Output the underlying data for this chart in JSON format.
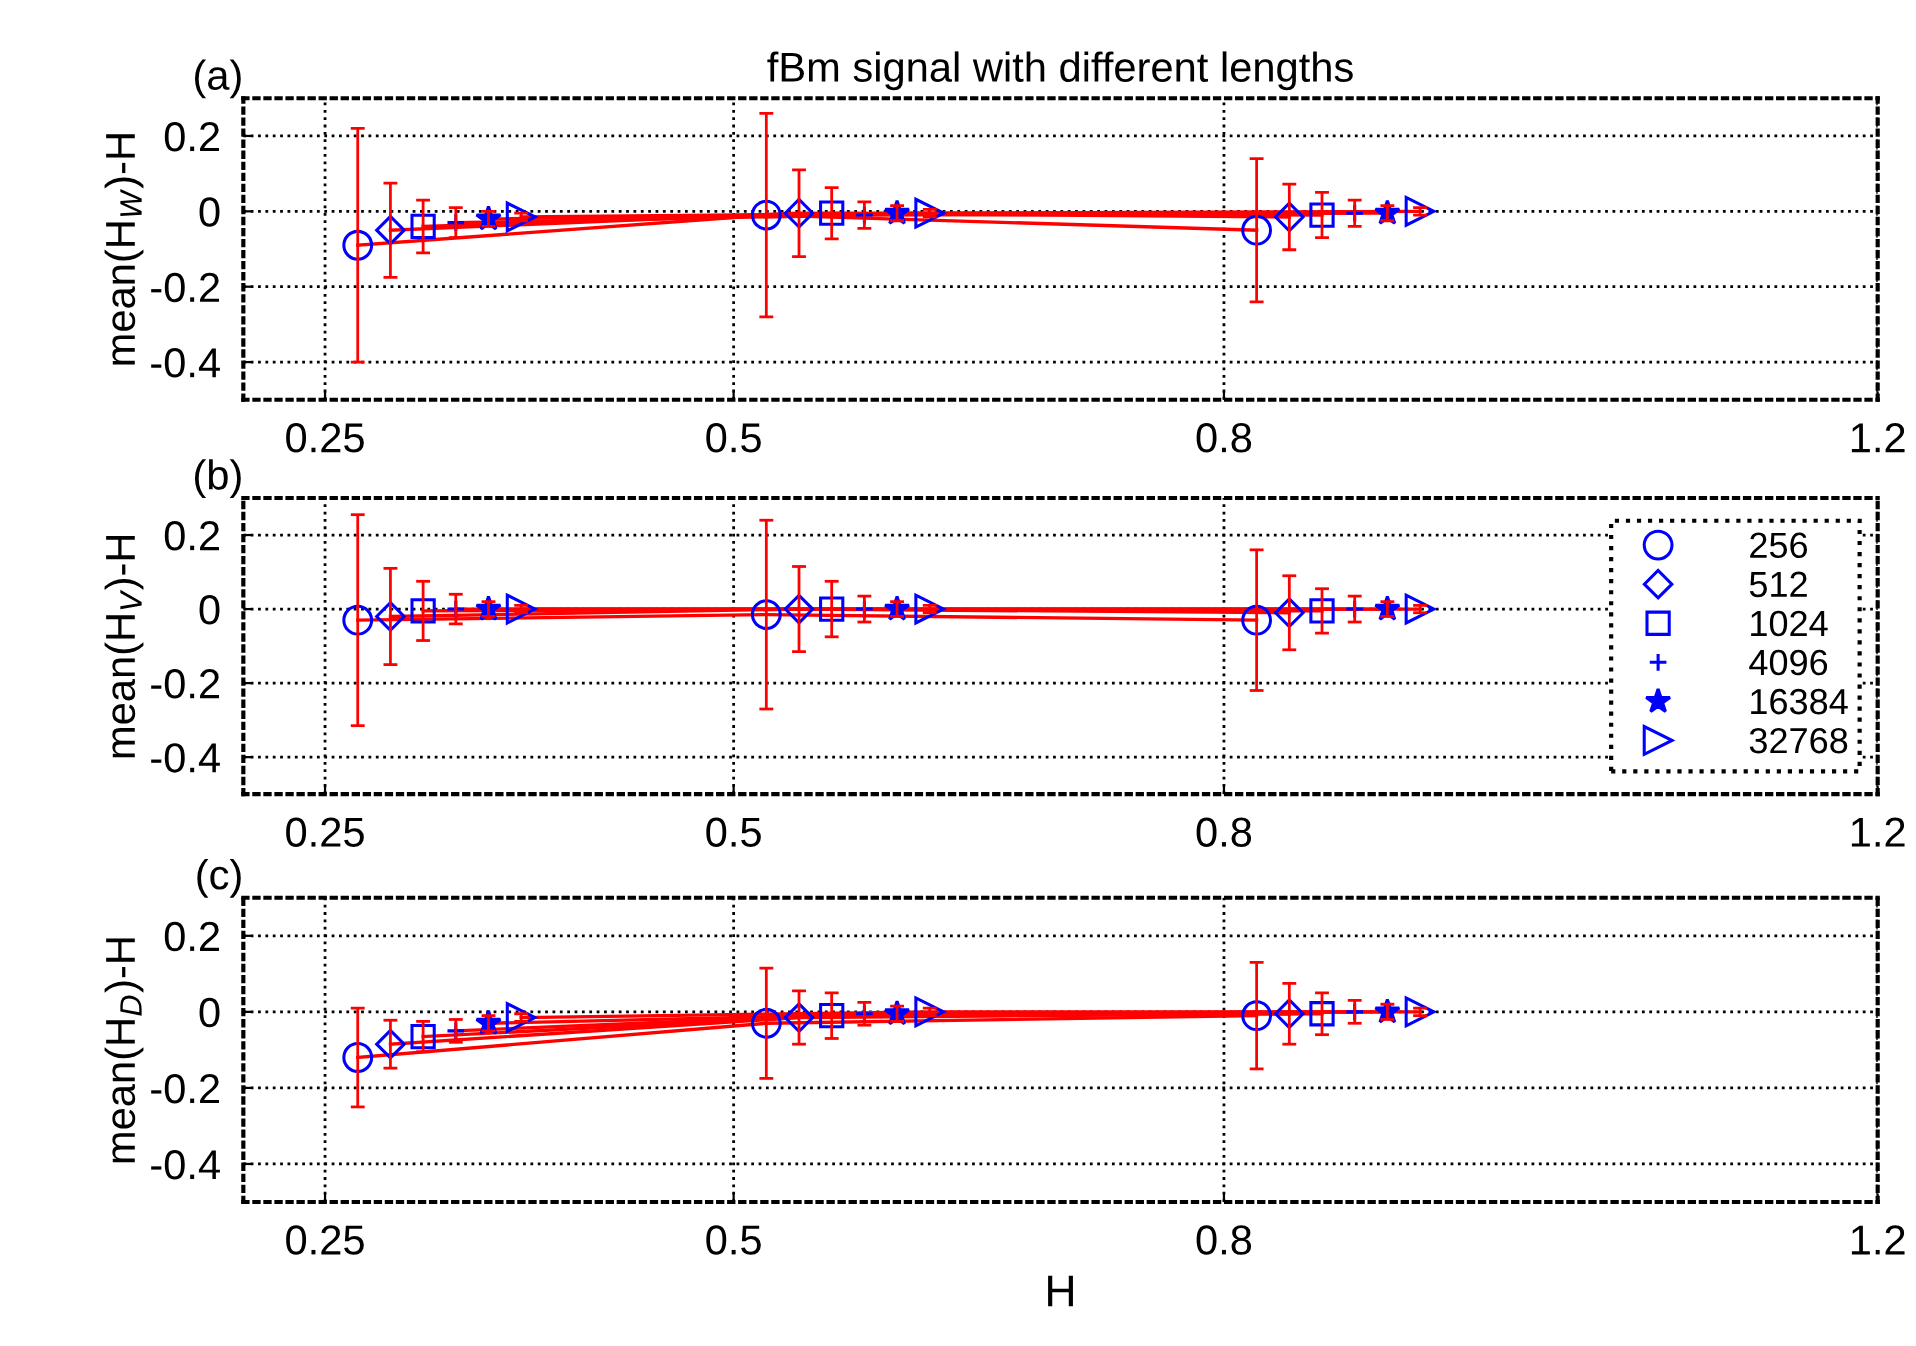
{
  "chart_data": [
    {
      "type": "line",
      "title": "fBm signal with different lengths",
      "ylabel": "mean(H$_{W}$)-H",
      "annotations": [
        "(a)"
      ],
      "xlim": [
        0.2,
        1.2
      ],
      "xticks": [
        0.25,
        0.5,
        0.8,
        1.2
      ],
      "ylim": [
        -0.5,
        0.3
      ],
      "yticks": [
        -0.4,
        -0.2,
        0,
        0.2
      ],
      "grid": true,
      "legend": false,
      "series": [
        {
          "color": "#ff0000",
          "marker": "circle",
          "x": [
            0.27,
            0.52,
            0.82
          ],
          "values": [
            -0.09,
            -0.01,
            -0.05
          ],
          "errors": [
            0.31,
            0.27,
            0.19
          ]
        },
        {
          "color": "#ff0000",
          "marker": "diamond",
          "x": [
            0.29,
            0.54,
            0.84
          ],
          "values": [
            -0.05,
            -0.005,
            -0.015
          ],
          "errors": [
            0.125,
            0.115,
            0.087
          ]
        },
        {
          "color": "#ff0000",
          "marker": "square",
          "x": [
            0.31,
            0.56,
            0.86
          ],
          "values": [
            -0.04,
            -0.005,
            -0.01
          ],
          "errors": [
            0.07,
            0.068,
            0.06
          ]
        },
        {
          "color": "#ff0000",
          "marker": "cross",
          "x": [
            0.33,
            0.58,
            0.88
          ],
          "values": [
            -0.03,
            -0.01,
            -0.005
          ],
          "errors": [
            0.04,
            0.035,
            0.035
          ]
        },
        {
          "color": "#ff0000",
          "marker": "star",
          "x": [
            0.35,
            0.6,
            0.9
          ],
          "values": [
            -0.02,
            -0.005,
            -0.005
          ],
          "errors": [
            0.02,
            0.02,
            0.02
          ]
        },
        {
          "color": "#ff0000",
          "marker": "triangle",
          "x": [
            0.37,
            0.62,
            0.92
          ],
          "values": [
            -0.015,
            -0.005,
            0
          ],
          "errors": [
            0.01,
            0.01,
            0.01
          ]
        }
      ]
    },
    {
      "type": "line",
      "ylabel": "mean(H$_{V}$)-H",
      "annotations": [
        "(b)"
      ],
      "xlim": [
        0.2,
        1.2
      ],
      "xticks": [
        0.25,
        0.5,
        0.8,
        1.2
      ],
      "ylim": [
        -0.5,
        0.3
      ],
      "yticks": [
        -0.4,
        -0.2,
        0,
        0.2
      ],
      "grid": true,
      "legend": "right",
      "series": [
        {
          "name": "256",
          "color": "#ff0000",
          "marker": "circle",
          "x": [
            0.27,
            0.52,
            0.82
          ],
          "values": [
            -0.03,
            -0.015,
            -0.03
          ],
          "errors": [
            0.285,
            0.255,
            0.19
          ]
        },
        {
          "name": "512",
          "color": "#ff0000",
          "marker": "diamond",
          "x": [
            0.29,
            0.54,
            0.84
          ],
          "values": [
            -0.02,
            0,
            -0.01
          ],
          "errors": [
            0.13,
            0.115,
            0.1
          ]
        },
        {
          "name": "1024",
          "color": "#ff0000",
          "marker": "square",
          "x": [
            0.31,
            0.56,
            0.86
          ],
          "values": [
            -0.005,
            0,
            -0.005
          ],
          "errors": [
            0.08,
            0.075,
            0.06
          ]
        },
        {
          "name": "4096",
          "color": "#ff0000",
          "marker": "cross",
          "x": [
            0.33,
            0.58,
            0.88
          ],
          "values": [
            0,
            0,
            0
          ],
          "errors": [
            0.04,
            0.035,
            0.035
          ]
        },
        {
          "name": "16384",
          "color": "#ff0000",
          "marker": "star",
          "x": [
            0.35,
            0.6,
            0.9
          ],
          "values": [
            0,
            0,
            0
          ],
          "errors": [
            0.02,
            0.02,
            0.02
          ]
        },
        {
          "name": "32768",
          "color": "#ff0000",
          "marker": "triangle",
          "x": [
            0.37,
            0.62,
            0.92
          ],
          "values": [
            0,
            0,
            0
          ],
          "errors": [
            0.01,
            0.01,
            0.01
          ]
        }
      ]
    },
    {
      "type": "line",
      "xlabel": "H",
      "ylabel": "mean(H$_{D}$)-H",
      "annotations": [
        "(c)"
      ],
      "xlim": [
        0.2,
        1.2
      ],
      "xticks": [
        0.25,
        0.5,
        0.8,
        1.2
      ],
      "ylim": [
        -0.5,
        0.3
      ],
      "yticks": [
        -0.4,
        -0.2,
        0,
        0.2
      ],
      "grid": true,
      "legend": false,
      "series": [
        {
          "color": "#ff0000",
          "marker": "circle",
          "x": [
            0.27,
            0.52,
            0.82
          ],
          "values": [
            -0.12,
            -0.03,
            -0.01
          ],
          "errors": [
            0.13,
            0.145,
            0.14
          ]
        },
        {
          "color": "#ff0000",
          "marker": "diamond",
          "x": [
            0.29,
            0.54,
            0.84
          ],
          "values": [
            -0.085,
            -0.015,
            -0.005
          ],
          "errors": [
            0.063,
            0.07,
            0.08
          ]
        },
        {
          "color": "#ff0000",
          "marker": "square",
          "x": [
            0.31,
            0.56,
            0.86
          ],
          "values": [
            -0.065,
            -0.01,
            -0.005
          ],
          "errors": [
            0.04,
            0.06,
            0.055
          ]
        },
        {
          "color": "#ff0000",
          "marker": "cross",
          "x": [
            0.33,
            0.58,
            0.88
          ],
          "values": [
            -0.05,
            -0.005,
            0
          ],
          "errors": [
            0.03,
            0.03,
            0.03
          ]
        },
        {
          "color": "#ff0000",
          "marker": "star",
          "x": [
            0.35,
            0.6,
            0.9
          ],
          "values": [
            -0.03,
            -0.005,
            0
          ],
          "errors": [
            0.02,
            0.02,
            0.02
          ]
        },
        {
          "color": "#ff0000",
          "marker": "triangle",
          "x": [
            0.37,
            0.62,
            0.92
          ],
          "values": [
            -0.015,
            0,
            0
          ],
          "errors": [
            0.01,
            0.01,
            0.01
          ]
        }
      ]
    }
  ]
}
